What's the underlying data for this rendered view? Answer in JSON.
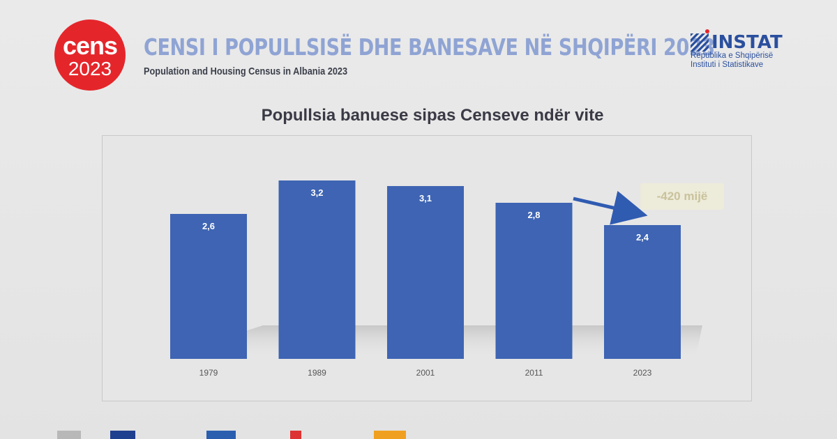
{
  "header": {
    "logo_line1": "cens",
    "logo_line2": "2023",
    "title": "CENSI I POPULLSISË DHE BANESAVE NË SHQIPËRI 2023",
    "subtitle": "Population and Housing Census in Albania 2023"
  },
  "instat": {
    "brand": "INSTAT",
    "line1": "Republika e Shqipërisë",
    "line2": "Instituti i Statistikave"
  },
  "chart_data": {
    "type": "bar",
    "title": "Popullsia banuese sipas Censeve ndër vite",
    "categories": [
      "1979",
      "1989",
      "2001",
      "2011",
      "2023"
    ],
    "values": [
      2.6,
      3.2,
      3.1,
      2.8,
      2.4
    ],
    "value_labels": [
      "2,6",
      "3,2",
      "3,1",
      "2,8",
      "2,4"
    ],
    "ylim": [
      0,
      3.2
    ],
    "grid": false,
    "bar_color": "#3e64b3",
    "annotation": "-420 mijë"
  },
  "colors": {
    "cens_red": "#e4262b",
    "title_blue": "#8fa4d4",
    "instat_blue": "#2a4f9e",
    "arrow_blue": "#2f5bb1"
  }
}
